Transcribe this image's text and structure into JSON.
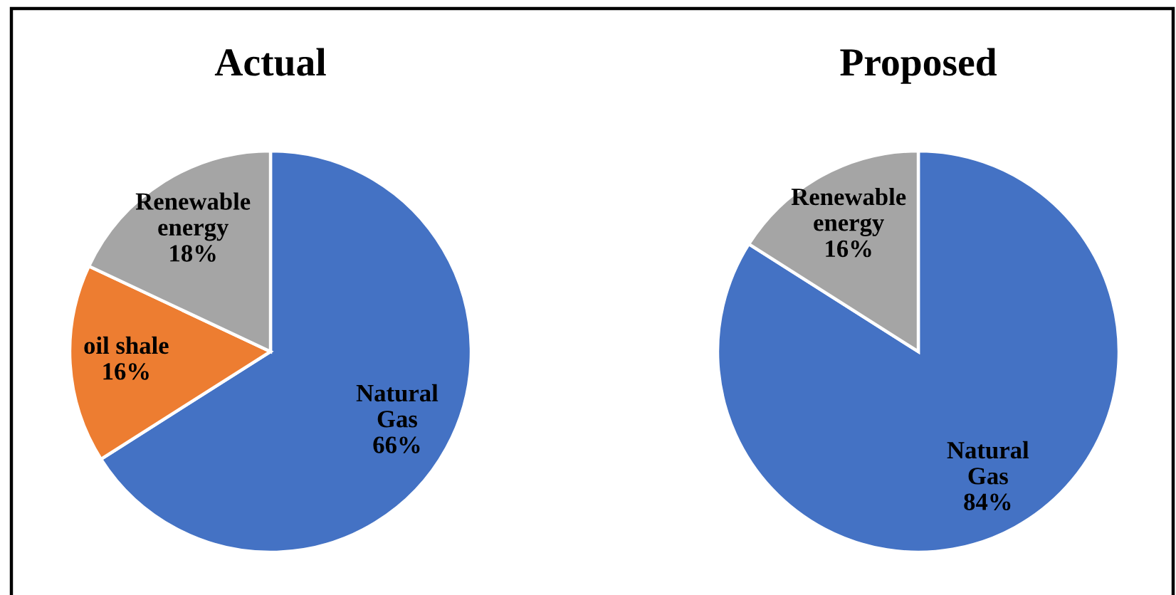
{
  "chart_data": [
    {
      "type": "pie",
      "title": "Actual",
      "categories": [
        "Natural Gas",
        "oil shale",
        "Renewable energy"
      ],
      "values": [
        66,
        16,
        18
      ],
      "colors": [
        "#4472c4",
        "#ed7d31",
        "#a5a5a5"
      ],
      "value_labels": [
        "66%",
        "16%",
        "18%"
      ]
    },
    {
      "type": "pie",
      "title": "Proposed",
      "categories": [
        "Natural Gas",
        "Renewable energy"
      ],
      "values": [
        84,
        16
      ],
      "colors": [
        "#4472c4",
        "#a5a5a5"
      ],
      "value_labels": [
        "84%",
        "16%"
      ]
    }
  ]
}
